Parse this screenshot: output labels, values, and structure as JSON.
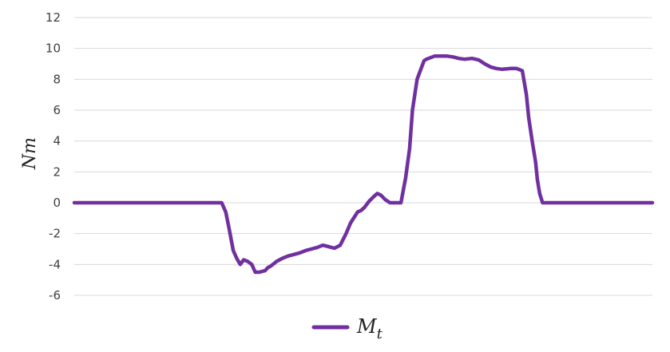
{
  "chart_data": {
    "type": "line",
    "title": "",
    "xlabel": "",
    "ylabel": "Nm",
    "ylim": [
      -6,
      12
    ],
    "yticks": [
      "12",
      "10",
      "8",
      "6",
      "4",
      "2",
      "0",
      "-2",
      "-4",
      "-6"
    ],
    "grid": true,
    "legend_position": "bottom",
    "xlim": [
      0,
      100
    ],
    "series": [
      {
        "name": "M",
        "name_subscript": "t",
        "color": "#7030a0",
        "x": [
          0,
          25.5,
          26.2,
          26.8,
          27.5,
          28.1,
          28.7,
          29.3,
          30.0,
          30.7,
          31.3,
          32.0,
          33.0,
          33.5,
          34.0,
          35.0,
          36.0,
          37.0,
          38.0,
          39.0,
          40.0,
          41.0,
          42.0,
          43.0,
          44.0,
          45.0,
          46.0,
          47.0,
          47.8,
          48.5,
          49.0,
          49.6,
          50.2,
          51.0,
          51.8,
          52.4,
          53.0,
          53.8,
          54.6,
          55.2,
          55.9,
          56.5,
          57.3,
          58.0,
          58.5,
          59.3,
          60.5,
          60.9,
          61.6,
          62.3,
          62.8,
          63.2,
          63.8,
          64.5,
          65.5,
          66.5,
          67.5,
          68.8,
          70.0,
          71.0,
          72.0,
          73.0,
          74.0,
          75.5,
          76.5,
          77.5,
          78.2,
          78.6,
          79.2,
          79.8,
          80.1,
          80.5,
          81.0,
          81.5,
          82.5,
          84.0,
          86.0,
          88.0,
          90.0,
          92.0,
          94.0,
          96.0,
          98.0,
          100.0
        ],
        "y": [
          0,
          0,
          -0.6,
          -1.7,
          -3.1,
          -3.6,
          -4.0,
          -3.7,
          -3.8,
          -4.0,
          -4.5,
          -4.5,
          -4.4,
          -4.2,
          -4.1,
          -3.8,
          -3.6,
          -3.45,
          -3.35,
          -3.25,
          -3.1,
          -3.0,
          -2.9,
          -2.75,
          -2.85,
          -2.95,
          -2.75,
          -2.0,
          -1.3,
          -0.9,
          -0.6,
          -0.5,
          -0.3,
          0.1,
          0.4,
          0.6,
          0.5,
          0.2,
          0.0,
          0.0,
          0.0,
          0.0,
          1.6,
          3.5,
          6.0,
          8.0,
          9.2,
          9.3,
          9.4,
          9.5,
          9.5,
          9.5,
          9.5,
          9.5,
          9.45,
          9.35,
          9.3,
          9.35,
          9.25,
          9.0,
          8.8,
          8.7,
          8.65,
          8.7,
          8.7,
          8.55,
          7.0,
          5.5,
          4.0,
          2.6,
          1.5,
          0.6,
          0.0,
          0.0,
          0.0,
          0.0,
          0.0,
          0.0,
          0.0,
          0.0,
          0.0,
          0.0,
          0.0,
          0.0
        ]
      }
    ]
  }
}
